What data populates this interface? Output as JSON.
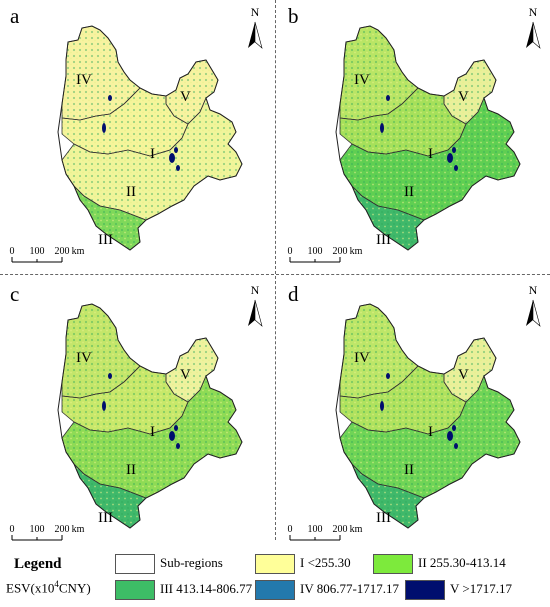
{
  "panels": [
    {
      "letter": "a",
      "region_colors": {
        "I": "#f5f59a",
        "II": "#f0f59a",
        "III": "#7ed85a",
        "IV": "#f7f3a0",
        "V": "#f7f3a0"
      }
    },
    {
      "letter": "b",
      "region_colors": {
        "I": "#a6e05a",
        "II": "#5fcf52",
        "III": "#3fb86a",
        "IV": "#b9e565",
        "V": "#e9f09a"
      }
    },
    {
      "letter": "c",
      "region_colors": {
        "I": "#c8e86a",
        "II": "#8edb55",
        "III": "#3fb86a",
        "IV": "#c4e66a",
        "V": "#eef29e"
      }
    },
    {
      "letter": "d",
      "region_colors": {
        "I": "#b0e25e",
        "II": "#6fd456",
        "III": "#3fb86a",
        "IV": "#bde668",
        "V": "#e9f09a"
      }
    }
  ],
  "north_label": "N",
  "region_labels": [
    "I",
    "II",
    "III",
    "IV",
    "V"
  ],
  "scale_bar": {
    "ticks": [
      "0",
      "100",
      "200"
    ],
    "unit": "km"
  },
  "legend": {
    "title": "Legend",
    "unit_prefix": "ESV(x10",
    "unit_sup": "4",
    "unit_suffix": "CNY)",
    "items": [
      {
        "label": "Sub-regions",
        "color": "#ffffff"
      },
      {
        "label": "I <255.30",
        "color": "#ffff99"
      },
      {
        "label": "II 255.30-413.14",
        "color": "#7dea3c"
      },
      {
        "label": "III 413.14-806.77",
        "color": "#3dbd66"
      },
      {
        "label": "IV 806.77-1717.17",
        "color": "#2379ad"
      },
      {
        "label": "V >1717.17",
        "color": "#000e6e"
      }
    ]
  }
}
